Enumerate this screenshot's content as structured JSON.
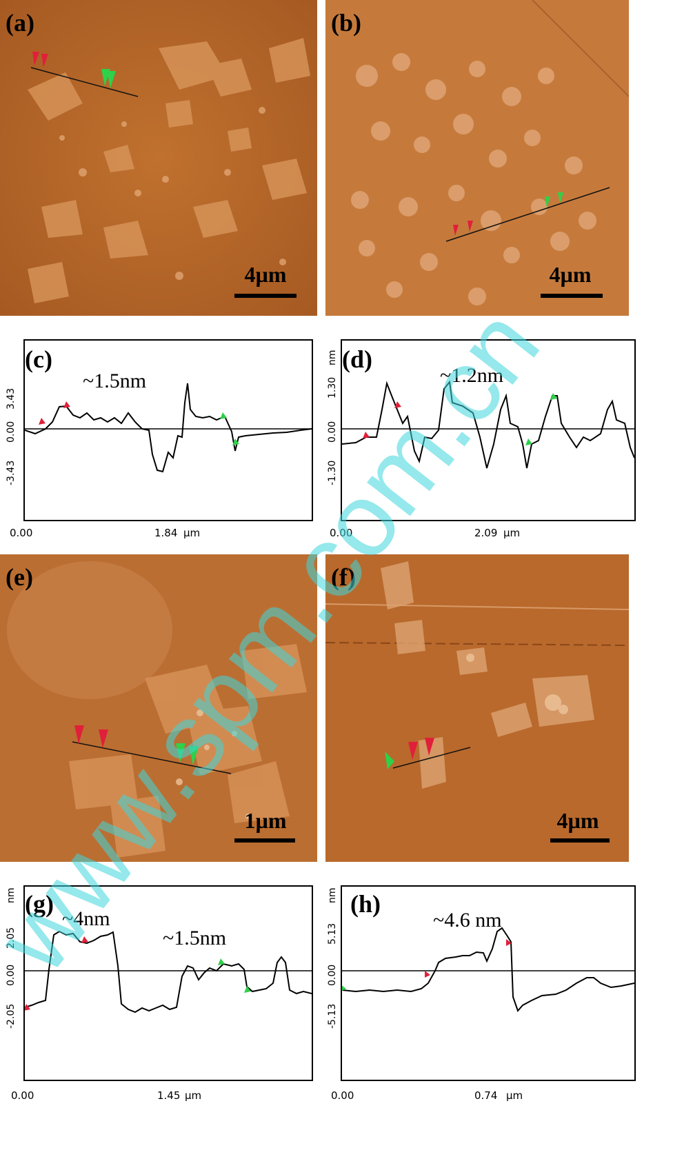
{
  "figure": {
    "panels": [
      {
        "id": "a",
        "label": "(a)",
        "scale": "4µm"
      },
      {
        "id": "b",
        "label": "(b)",
        "scale": "4µm"
      },
      {
        "id": "e",
        "label": "(e)",
        "scale": "1µm"
      },
      {
        "id": "f",
        "label": "(f)",
        "scale": "4µm"
      }
    ],
    "profiles": [
      {
        "id": "c",
        "label": "(c)",
        "annotation": "~1.5nm",
        "ytop": "3.43",
        "ymid": "0.00",
        "ybot": "-3.43",
        "yunit": "",
        "x0": "0.00",
        "xmid": "1.84",
        "xunit": "µm"
      },
      {
        "id": "d",
        "label": "(d)",
        "annotation": "~1.2nm",
        "ytop": "1.30",
        "ymid": "0.00",
        "ybot": "-1.30",
        "yunit": "nm",
        "x0": "0.00",
        "xmid": "2.09",
        "xunit": "µm"
      },
      {
        "id": "g",
        "label": "(g)",
        "annotation": "~4nm",
        "annotation2": "~1.5nm",
        "ytop": "2.05",
        "ymid": "0.00",
        "ybot": "-2.05",
        "yunit": "nm",
        "x0": "0.00",
        "xmid": "1.45",
        "xunit": "µm"
      },
      {
        "id": "h",
        "label": "(h)",
        "annotation": "~4.6 nm",
        "ytop": "5.13",
        "ymid": "0.00",
        "ybot": "-5.13",
        "yunit": "nm",
        "x0": "0.00",
        "xmid": "0.74",
        "xunit": "µm"
      }
    ]
  },
  "watermark": "www.spm.com.cn",
  "colors": {
    "afm": "#b8692d",
    "marker_red": "#e0203a",
    "marker_green": "#2fd04a",
    "watermark": "#3fd6dc"
  }
}
